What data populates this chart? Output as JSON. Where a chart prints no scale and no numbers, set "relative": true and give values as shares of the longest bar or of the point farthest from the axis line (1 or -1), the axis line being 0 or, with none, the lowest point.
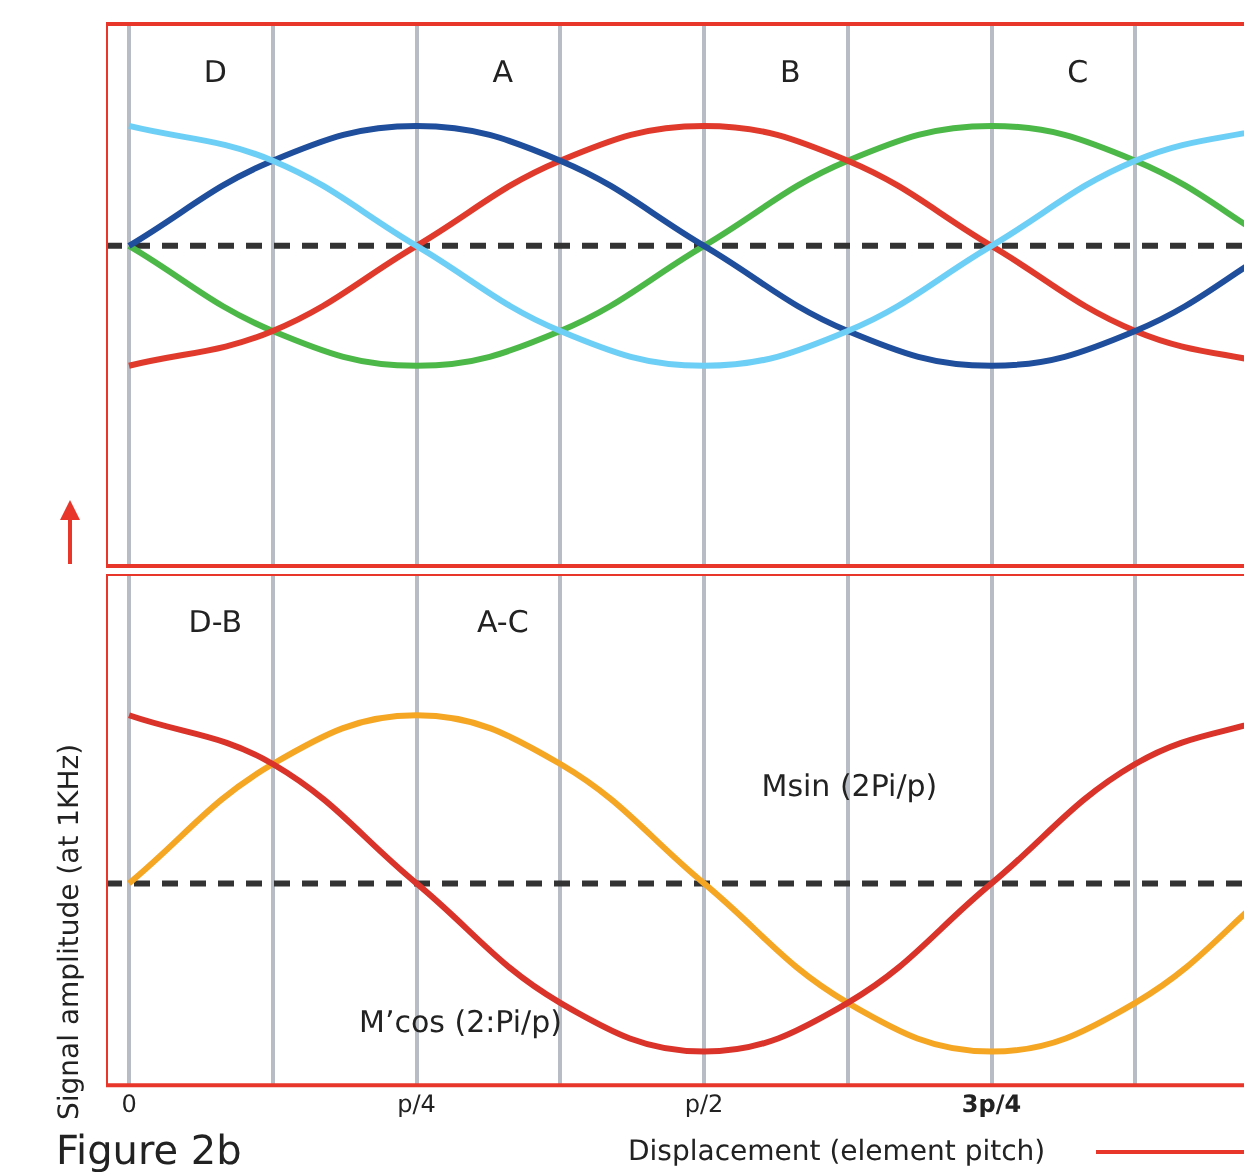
{
  "chart_data": [
    {
      "type": "line",
      "relative": true,
      "marker": "none",
      "grid": "x",
      "tick_labels": false,
      "categories": [
        null,
        null,
        null,
        null,
        null,
        null,
        null,
        null,
        null
      ],
      "series": [
        {
          "name": "D",
          "color": "#6dcff6",
          "values": [
            1,
            0.71,
            0,
            -0.71,
            -1,
            -0.71,
            0,
            0.71,
            1
          ]
        },
        {
          "name": "A",
          "color": "#1f4e9c",
          "values": [
            0,
            0.71,
            1,
            0.71,
            0,
            -0.71,
            -1,
            -0.71,
            0
          ]
        },
        {
          "name": "B",
          "color": "#e03a2c",
          "values": [
            -1,
            -0.71,
            0,
            0.71,
            1,
            0.71,
            0,
            -0.71,
            -1
          ]
        },
        {
          "name": "C",
          "color": "#4cb848",
          "values": [
            0,
            -0.71,
            -1,
            -0.71,
            0,
            0.71,
            1,
            0.71,
            0
          ]
        }
      ],
      "ref_lines": [
        {
          "axis": "y",
          "value": 0,
          "color": "#333333",
          "line_style": "dashed"
        }
      ]
    },
    {
      "type": "line",
      "relative": true,
      "marker": "none",
      "grid": "x",
      "tick_labels": "x",
      "title": "Figure 2b",
      "xlabel": "Displacement (element pitch)",
      "ylabel": "Signal amplitude (at 1KHz)",
      "categories": [
        "0",
        null,
        "p/4",
        null,
        "p/2",
        null,
        "3p/4",
        null,
        null
      ],
      "series": [
        {
          "name": "D-B",
          "color": "#d9332a",
          "values": [
            1,
            0.71,
            0,
            -0.71,
            -1,
            -0.71,
            0,
            0.71,
            1
          ]
        },
        {
          "name": "A-C",
          "color": "#f5a623",
          "values": [
            0,
            0.71,
            1,
            0.71,
            0,
            -0.71,
            -1,
            -0.71,
            0
          ]
        }
      ],
      "ref_lines": [
        {
          "axis": "y",
          "value": 0,
          "color": "#333333",
          "line_style": "dashed"
        }
      ],
      "annotations": [
        "Msin (2Pi/p)",
        "M’cos (2:Pi/p)"
      ]
    }
  ]
}
